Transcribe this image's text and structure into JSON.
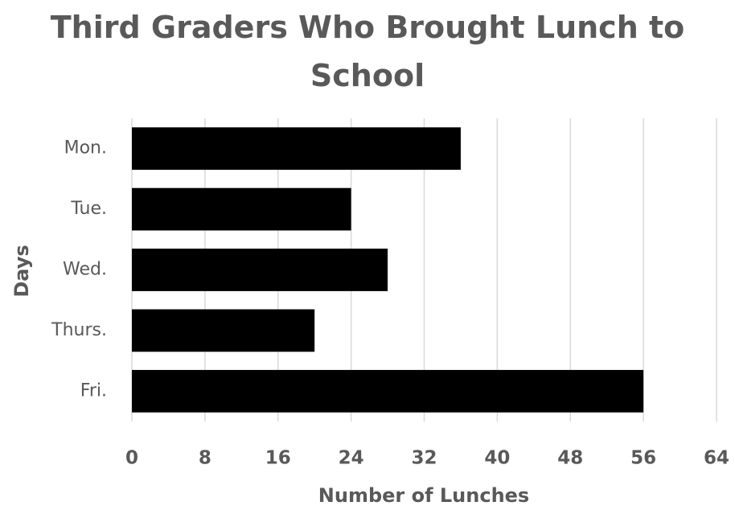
{
  "chart_data": {
    "type": "bar",
    "orientation": "horizontal",
    "title": "Third Graders Who Brought Lunch to School",
    "categories": [
      "Mon.",
      "Tue.",
      "Wed.",
      "Thurs.",
      "Fri."
    ],
    "values": [
      36,
      24,
      28,
      20,
      56
    ],
    "color": "#000000",
    "xlabel": "Number of Lunches",
    "ylabel": "Days",
    "xlim": [
      0,
      64
    ],
    "xticks": [
      0,
      8,
      16,
      24,
      32,
      40,
      48,
      56,
      64
    ],
    "grid": true
  }
}
